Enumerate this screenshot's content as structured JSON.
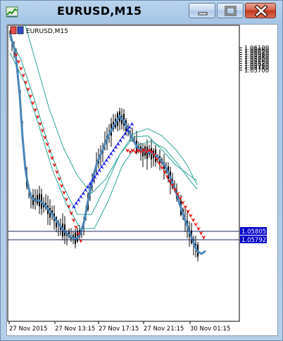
{
  "window": {
    "title": "EURUSD,M15",
    "buttons": [
      "minimize",
      "maximize",
      "close"
    ]
  },
  "chart": {
    "label": "EURUSD,M15",
    "price_labels": [
      "1.06100",
      "1.06060",
      "1.06020",
      "1.05980",
      "1.05940",
      "1.05900",
      "1.05860",
      "1.05820",
      "1.05780",
      "1.05740",
      "1.05700"
    ],
    "time_labels": [
      "27 Nov 2015",
      "27 Nov 13:15",
      "27 Nov 17:15",
      "27 Nov 21:15",
      "30 Nov 01:15"
    ],
    "markers": [
      {
        "value": "1.05805",
        "color": "#0000cc"
      },
      {
        "value": "1.05792",
        "color": "#0000cc"
      }
    ],
    "colors": {
      "candles": "#000000",
      "moving_average": "#4a85b8",
      "envelope": "#2aa59a",
      "up_arrows": "#1a1aee",
      "down_arrows": "#ee1111"
    }
  }
}
